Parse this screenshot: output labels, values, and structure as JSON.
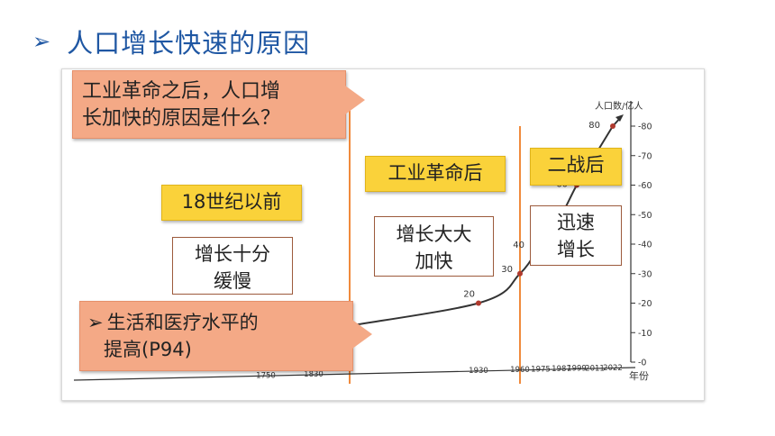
{
  "slide": {
    "title_arrow": "➢",
    "title": "人口增长快速的原因"
  },
  "question_callout": {
    "line1": "工业革命之后，人口增",
    "line2": "长加快的原因是什么？"
  },
  "answer_callout": {
    "arrow": "➢",
    "line1": "生活和医疗水平的",
    "line2": "提高(P94)"
  },
  "eras": [
    {
      "label": "18世纪以前",
      "desc_line1": "增长十分",
      "desc_line2": "缓慢"
    },
    {
      "label": "工业革命后",
      "desc_line1": "增长大大",
      "desc_line2": "加快"
    },
    {
      "label": "二战后",
      "desc_line1": "迅速",
      "desc_line2": "增长"
    }
  ],
  "chart_data": {
    "type": "line",
    "ylabel": "人口数/亿人",
    "xlabel": "年份",
    "ylim": [
      0,
      80
    ],
    "y_ticks": [
      "0",
      "10",
      "20",
      "30",
      "40",
      "50",
      "60",
      "70",
      "80"
    ],
    "x_ticks": [
      "1750",
      "1830",
      "1930",
      "1960",
      "1975",
      "1987",
      "1999",
      "2011",
      "2022"
    ],
    "point_labels": [
      "20",
      "30",
      "40",
      "60",
      "80"
    ],
    "series": [
      {
        "x": [
          1750,
          1830,
          1930,
          1960,
          1975,
          1987,
          1999,
          2011,
          2022
        ],
        "values": [
          7,
          10,
          20,
          30,
          40,
          50,
          60,
          70,
          80
        ]
      }
    ],
    "line_color": "#333333",
    "point_color": "#b03a2e",
    "divider_color": "#f08a3c"
  }
}
